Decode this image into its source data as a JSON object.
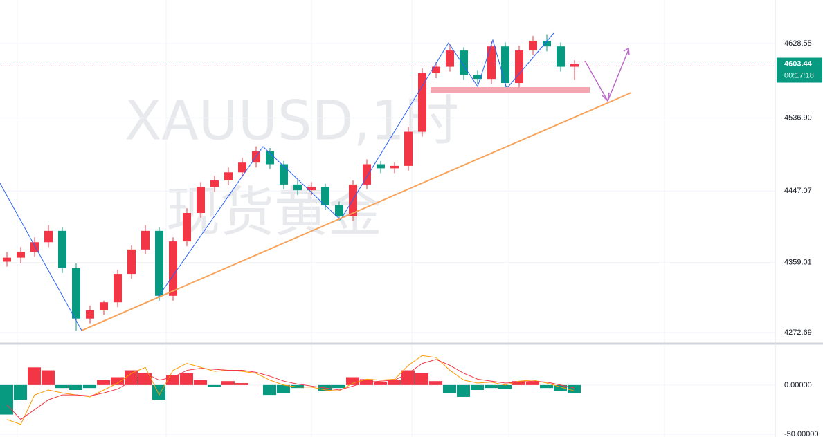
{
  "chart_data": {
    "type": "candlestick",
    "watermark": "XAUUSD,1时",
    "watermark_sub": "现货黄金",
    "open": [
      4360,
      4365,
      4372,
      4384,
      4398,
      4352,
      4290,
      4300,
      4310,
      4345,
      4375,
      4398,
      4318,
      4385,
      4420,
      4452,
      4460,
      4470,
      4482,
      4496,
      4480,
      4455,
      4448,
      4452,
      4430,
      4416,
      4455,
      4480,
      4475,
      4478,
      4520,
      4592,
      4600,
      4620,
      4590,
      4585,
      4625,
      4580,
      4620,
      4632,
      4625,
      4600
    ],
    "high": [
      4372,
      4378,
      4390,
      4405,
      4402,
      4358,
      4306,
      4312,
      4350,
      4380,
      4405,
      4402,
      4390,
      4426,
      4458,
      4466,
      4476,
      4488,
      4502,
      4500,
      4484,
      4460,
      4458,
      4456,
      4434,
      4460,
      4486,
      4484,
      4482,
      4526,
      4598,
      4606,
      4628,
      4624,
      4596,
      4631,
      4630,
      4626,
      4638,
      4640,
      4630,
      4608
    ],
    "low": [
      4354,
      4358,
      4366,
      4378,
      4346,
      4275,
      4284,
      4294,
      4304,
      4339,
      4369,
      4312,
      4312,
      4379,
      4414,
      4446,
      4454,
      4464,
      4476,
      4474,
      4449,
      4442,
      4442,
      4424,
      4410,
      4410,
      4449,
      4469,
      4469,
      4472,
      4514,
      4586,
      4594,
      4584,
      4579,
      4579,
      4574,
      4574,
      4614,
      4619,
      4594,
      4584
    ],
    "close": [
      4365,
      4372,
      4384,
      4398,
      4352,
      4290,
      4300,
      4310,
      4345,
      4375,
      4398,
      4318,
      4385,
      4420,
      4452,
      4460,
      4470,
      4482,
      4496,
      4480,
      4455,
      4448,
      4452,
      4430,
      4416,
      4455,
      4480,
      4475,
      4478,
      4520,
      4592,
      4600,
      4620,
      4590,
      4585,
      4625,
      4580,
      4620,
      4632,
      4625,
      4600,
      4603.44
    ],
    "up_color": "#f23645",
    "down_color": "#089981",
    "ylim": [
      4260.8,
      4682.2
    ],
    "yticks": [
      4628.55,
      {
        "value": 4536.9,
        "label": "4536.90"
      },
      4447.07,
      4359.01,
      4272.69
    ],
    "last_price": 4603.44,
    "countdown": "00:17:18",
    "macd": {
      "hist": [
        -30,
        -15,
        18,
        15,
        -3,
        -5,
        -3,
        5,
        8,
        15,
        12,
        -15,
        10,
        12,
        5,
        -2,
        4,
        2,
        0,
        -10,
        -8,
        -3,
        0,
        -6,
        -3,
        8,
        6,
        3,
        5,
        15,
        12,
        4,
        -8,
        -12,
        -5,
        -3,
        -4,
        4,
        3,
        -3,
        -6,
        -8
      ],
      "macd": [
        -35,
        -40,
        -10,
        -5,
        -8,
        -10,
        -12,
        -5,
        2,
        12,
        18,
        -10,
        15,
        22,
        18,
        14,
        15,
        14,
        12,
        5,
        0,
        -2,
        -2,
        -5,
        -6,
        2,
        6,
        5,
        6,
        20,
        30,
        28,
        15,
        5,
        2,
        3,
        0,
        4,
        5,
        2,
        -2,
        -6
      ],
      "signal": [
        -20,
        -35,
        -25,
        -15,
        -10,
        -10,
        -11,
        -8,
        -4,
        4,
        12,
        5,
        8,
        15,
        17,
        16,
        15,
        15,
        13,
        9,
        4,
        1,
        -1,
        -3,
        -5,
        -1,
        3,
        4,
        5,
        12,
        22,
        26,
        20,
        12,
        6,
        4,
        2,
        3,
        4,
        3,
        0,
        -3
      ],
      "macd_color": "#ff9800",
      "signal_color": "#f23645",
      "ylim": [
        -52,
        40
      ],
      "yticks": [
        {
          "value": 0,
          "label": "0.00000"
        },
        {
          "value": -50,
          "label": "-50.00000"
        }
      ]
    },
    "grid": true
  }
}
